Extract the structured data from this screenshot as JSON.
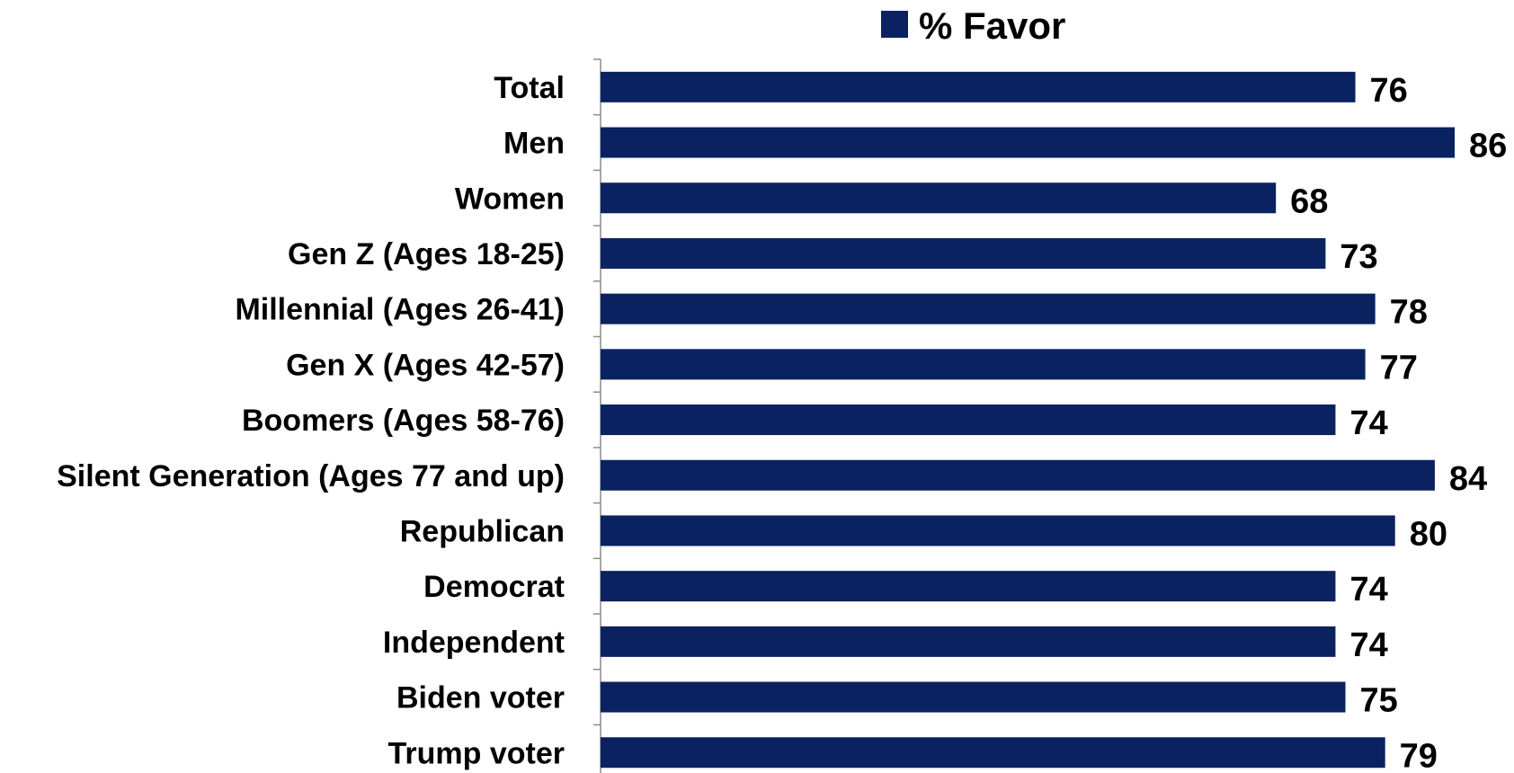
{
  "chart_data": {
    "type": "bar",
    "orientation": "horizontal",
    "categories": [
      "Total",
      "Men",
      "Women",
      "Gen Z (Ages 18-25)",
      "Millennial (Ages 26-41)",
      "Gen X (Ages 42-57)",
      "Boomers (Ages 58-76)",
      "Silent Generation (Ages 77 and up)",
      "Republican",
      "Democrat",
      "Independent",
      "Biden voter",
      "Trump voter"
    ],
    "series": [
      {
        "name": "% Favor",
        "color": "#0a2260",
        "values": [
          76,
          86,
          68,
          73,
          78,
          77,
          74,
          84,
          80,
          74,
          74,
          75,
          79
        ]
      }
    ],
    "xlim": [
      0,
      86
    ],
    "grid": false,
    "legend_position": "top"
  }
}
